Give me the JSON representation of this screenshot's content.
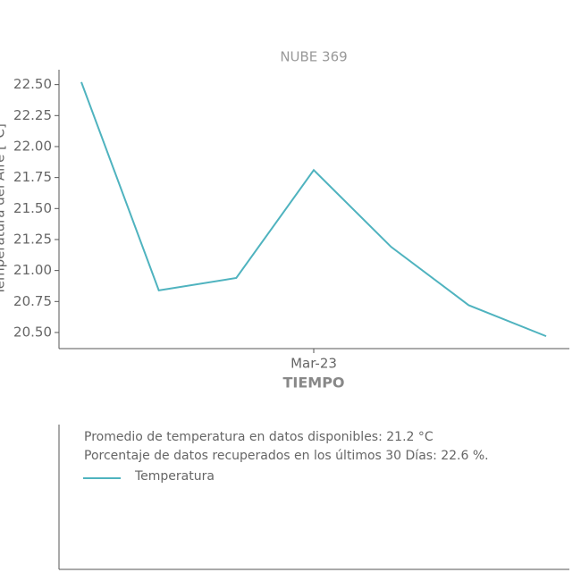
{
  "chart_data": {
    "type": "line",
    "title": "NUBE 369",
    "x_label": "TIEMPO",
    "y_label": "Temperatura del Aire [°C]",
    "categories": [
      null,
      null,
      null,
      "Mar-23",
      null,
      null,
      null
    ],
    "series": [
      {
        "name": "Temperatura",
        "color": "#4fb3bf",
        "values": [
          22.52,
          20.84,
          20.94,
          21.81,
          21.19,
          20.72,
          20.47
        ]
      }
    ],
    "ylim": [
      20.37,
      22.62
    ],
    "yticks": [
      {
        "value": 20.5,
        "label": "20.50"
      },
      {
        "value": 20.75,
        "label": "20.75"
      },
      {
        "value": 21,
        "label": "21.00"
      },
      {
        "value": 21.25,
        "label": "21.25"
      },
      {
        "value": 21.5,
        "label": "21.50"
      },
      {
        "value": 21.75,
        "label": "21.75"
      },
      {
        "value": 22,
        "label": "22.00"
      },
      {
        "value": 22.25,
        "label": "22.25"
      },
      {
        "value": 22.5,
        "label": "22.50"
      }
    ],
    "annotations": [
      "Promedio de temperatura en datos disponibles: 21.2 °C",
      "Porcentaje de datos recuperados en los últimos 30 Días: 22.6 %."
    ]
  }
}
